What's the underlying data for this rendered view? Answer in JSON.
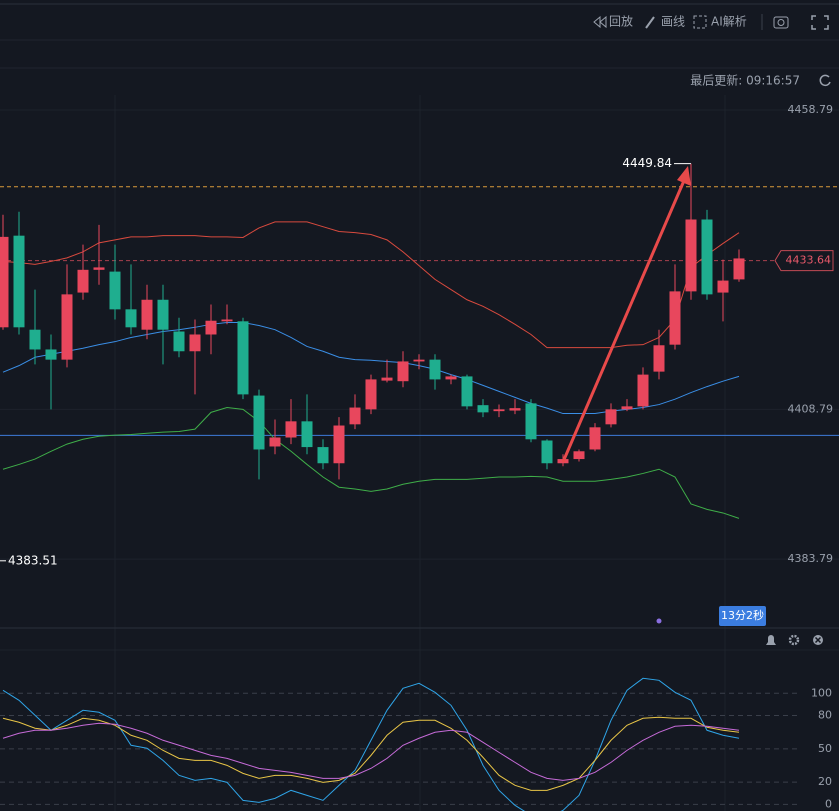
{
  "toolbar": [
    "回放",
    "画线",
    "AI解析"
  ],
  "update": "最后更新: 09:16:57",
  "countdown": "13分2秒",
  "chart_data": [
    {
      "type": "candlestick",
      "ylim": [
        4372.29,
        4461.29
      ],
      "yticks": [
        4458.79,
        4408.79,
        4383.79
      ],
      "up_color": "#e8475d",
      "down_color": "#1fae8f",
      "open": [
        4422.5,
        4437.8,
        4422.1,
        4418.8,
        4417.1,
        4428.3,
        4432.1,
        4431.8,
        4425.5,
        4422.1,
        4427.1,
        4421.8,
        4418.5,
        4421.3,
        4423.5,
        4423.5,
        4411.1,
        4402.6,
        4404.1,
        4406.8,
        4402.5,
        4399.8,
        4406.3,
        4408.8,
        4413.6,
        4413.5,
        4416.8,
        4417.1,
        4413.8,
        4414.3,
        4409.5,
        4408.5,
        4408.6,
        4409.8,
        4403.6,
        4399.8,
        4400.5,
        4402.1,
        4406.3,
        4408.8,
        4409.3,
        4415.1,
        4419.6,
        4428.5,
        4440.5,
        4428.3,
        4430.5
      ],
      "high": [
        4441.3,
        4441.8,
        4428.8,
        4421.3,
        4433.0,
        4436.3,
        4439.6,
        4436.3,
        4433.0,
        4429.6,
        4429.6,
        4424.1,
        4423.8,
        4426.3,
        4426.3,
        4424.1,
        4412.1,
        4407.1,
        4410.5,
        4411.3,
        4403.8,
        4407.5,
        4411.3,
        4414.6,
        4417.1,
        4418.5,
        4418.0,
        4418.0,
        4414.6,
        4414.6,
        4410.5,
        4409.6,
        4410.5,
        4410.5,
        4403.8,
        4401.3,
        4402.1,
        4406.5,
        4409.8,
        4410.5,
        4415.8,
        4422.1,
        4433.0,
        4449.84,
        4442.1,
        4433.8,
        4435.5
      ],
      "low": [
        4422.1,
        4421.3,
        4416.3,
        4408.8,
        4415.8,
        4427.1,
        4429.6,
        4423.8,
        4421.3,
        4420.5,
        4416.3,
        4417.5,
        4411.3,
        4418.0,
        4423.0,
        4410.5,
        4397.1,
        4401.3,
        4403.0,
        4401.3,
        4398.8,
        4397.1,
        4405.5,
        4408.0,
        4413.3,
        4412.5,
        4415.5,
        4412.1,
        4413.0,
        4408.8,
        4407.5,
        4407.5,
        4408.0,
        4403.3,
        4398.8,
        4399.3,
        4400.1,
        4401.8,
        4405.8,
        4408.5,
        4408.8,
        4413.8,
        4418.8,
        4427.1,
        4427.1,
        4423.5,
        4430.1
      ],
      "close": [
        4437.6,
        4422.5,
        4418.8,
        4417.1,
        4428.0,
        4432.1,
        4432.5,
        4425.5,
        4422.5,
        4427.1,
        4422.1,
        4418.5,
        4421.3,
        4423.6,
        4423.8,
        4411.3,
        4402.1,
        4404.1,
        4406.8,
        4402.5,
        4399.8,
        4406.1,
        4409.1,
        4413.8,
        4414.1,
        4416.8,
        4417.1,
        4413.8,
        4414.3,
        4409.3,
        4408.3,
        4408.8,
        4409.0,
        4403.8,
        4399.8,
        4400.5,
        4401.8,
        4405.8,
        4408.8,
        4409.3,
        4414.6,
        4419.5,
        4428.5,
        4440.5,
        4428.0,
        4430.3,
        4434.0
      ],
      "series": [
        {
          "color": "#d84a3e",
          "values": [
            4433.5,
            4433.3,
            4433.0,
            4433.5,
            4434.1,
            4435.1,
            4436.6,
            4437.1,
            4437.6,
            4437.6,
            4437.8,
            4437.8,
            4437.8,
            4437.6,
            4437.6,
            4437.5,
            4439.1,
            4440.1,
            4440.1,
            4440.1,
            4439.3,
            4438.5,
            4438.3,
            4438.0,
            4437.1,
            4435.1,
            4432.8,
            4430.5,
            4428.8,
            4427.1,
            4426.0,
            4424.6,
            4423.0,
            4421.3,
            4419.1,
            4419.1,
            4419.1,
            4419.1,
            4419.1,
            4419.5,
            4419.6,
            4420.8,
            4423.8,
            4432.5,
            4434.6,
            4436.5,
            4438.3
          ]
        },
        {
          "color": "#3a8ee6",
          "values": [
            4415.0,
            4416.1,
            4417.5,
            4418.0,
            4418.5,
            4419.0,
            4419.6,
            4420.1,
            4420.8,
            4421.3,
            4421.8,
            4422.1,
            4422.5,
            4423.0,
            4423.3,
            4423.3,
            4422.8,
            4422.1,
            4420.8,
            4419.3,
            4418.5,
            4417.5,
            4417.1,
            4417.0,
            4416.8,
            4416.6,
            4416.1,
            4415.5,
            4414.6,
            4413.8,
            4412.8,
            4411.8,
            4410.8,
            4409.8,
            4409.0,
            4408.1,
            4408.1,
            4408.1,
            4408.5,
            4408.8,
            4409.1,
            4409.6,
            4410.5,
            4411.6,
            4412.6,
            4413.5,
            4414.3
          ]
        },
        {
          "color": "#3fae49",
          "values": [
            4398.8,
            4399.6,
            4400.5,
            4401.8,
            4403.0,
            4403.8,
            4404.3,
            4404.5,
            4404.6,
            4404.8,
            4405.0,
            4405.1,
            4405.5,
            4408.3,
            4409.1,
            4408.8,
            4406.8,
            4403.8,
            4401.8,
            4399.6,
            4397.5,
            4395.8,
            4395.5,
            4395.1,
            4395.5,
            4396.3,
            4396.8,
            4397.1,
            4397.1,
            4397.1,
            4397.3,
            4397.5,
            4397.5,
            4397.6,
            4397.5,
            4396.8,
            4396.8,
            4396.8,
            4397.1,
            4397.5,
            4398.1,
            4398.8,
            4397.5,
            4393.0,
            4392.1,
            4391.5,
            4390.6
          ]
        }
      ],
      "lines": [
        {
          "value": 4445.96,
          "color": "#d99a3a"
        },
        {
          "value": 4404.46,
          "color": "#3d7bd9"
        }
      ],
      "current_price": 4433.64,
      "high_label": 4449.84,
      "low_label": 4383.51
    },
    {
      "type": "line",
      "ylim": [
        -6,
        139
      ],
      "yticks": [
        0,
        20,
        50,
        80,
        100
      ],
      "series": [
        {
          "color": "#2fa4e7",
          "values": [
            102.7,
            93.7,
            80.2,
            66.7,
            75.7,
            84.7,
            82.9,
            75.7,
            53.2,
            50.5,
            39.6,
            26.1,
            21.6,
            23.4,
            19.8,
            3.6,
            1.8,
            5.4,
            12.6,
            8.1,
            3.6,
            17.1,
            30.6,
            57.7,
            84.7,
            104.5,
            109.0,
            100.9,
            89.2,
            66.7,
            35.1,
            12.6,
            -0.9,
            -9.9,
            -12.6,
            -5.4,
            8.1,
            39.6,
            75.7,
            102.7,
            113.5,
            111.7,
            100.9,
            93.7,
            66.7,
            62.2,
            59.5
          ]
        },
        {
          "color": "#e8c547",
          "values": [
            77.5,
            73.9,
            68.5,
            66.7,
            71.2,
            77.5,
            75.7,
            71.2,
            62.2,
            57.7,
            48.6,
            41.4,
            39.6,
            39.6,
            35.1,
            27.9,
            23.4,
            26.1,
            26.1,
            23.4,
            19.8,
            21.6,
            27.9,
            44.1,
            62.2,
            73.9,
            75.7,
            75.7,
            68.5,
            57.7,
            42.3,
            26.1,
            17.1,
            12.6,
            12.6,
            17.1,
            23.4,
            39.6,
            57.7,
            71.2,
            77.5,
            78.4,
            77.5,
            77.5,
            69.4,
            66.7,
            64.9
          ]
        },
        {
          "color": "#c66bd8",
          "values": [
            59.5,
            64.0,
            66.7,
            66.7,
            68.5,
            71.2,
            73.0,
            72.1,
            68.5,
            64.0,
            57.7,
            53.2,
            48.6,
            44.1,
            41.4,
            36.9,
            32.4,
            30.6,
            28.8,
            26.1,
            23.4,
            23.4,
            26.1,
            32.4,
            41.4,
            53.2,
            59.5,
            64.9,
            66.7,
            64.9,
            55.9,
            46.8,
            37.8,
            28.8,
            23.4,
            21.6,
            23.4,
            28.8,
            37.8,
            48.6,
            57.7,
            64.9,
            70.3,
            71.2,
            70.3,
            68.5,
            66.7
          ]
        }
      ]
    }
  ]
}
